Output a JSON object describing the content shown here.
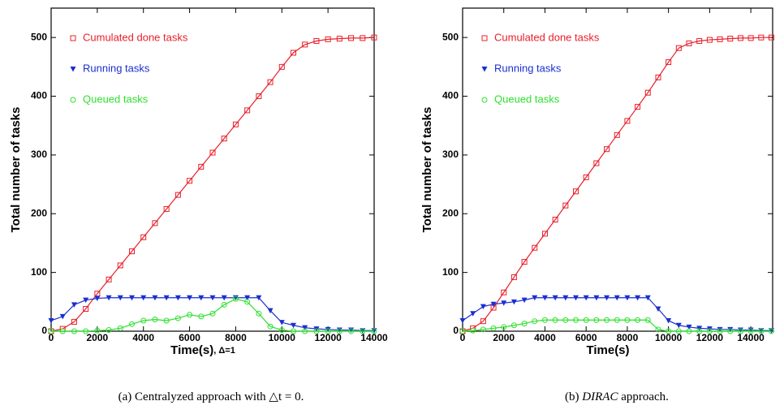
{
  "chart_data": [
    {
      "type": "line",
      "xlabel": "Time(s)",
      "xlabel_note": ", Δ=1",
      "ylabel": "Total number of tasks",
      "caption": [
        "(a) Centralyzed approach with △t = 0."
      ],
      "legend": "upper left",
      "xlim": [
        0,
        14000
      ],
      "ylim": [
        0,
        550
      ],
      "xticks": [
        0,
        2000,
        4000,
        6000,
        8000,
        10000,
        12000,
        14000
      ],
      "yticks": [
        0,
        100,
        200,
        300,
        400,
        500
      ],
      "x": [
        0,
        500,
        1000,
        1500,
        2000,
        2500,
        3000,
        3500,
        4000,
        4500,
        5000,
        5500,
        6000,
        6500,
        7000,
        7500,
        8000,
        8500,
        9000,
        9500,
        10000,
        10500,
        11000,
        11500,
        12000,
        12500,
        13000,
        13500,
        14000
      ],
      "series": [
        {
          "name": "Cumulated done tasks",
          "color": "#e8202a",
          "marker": "square",
          "values": [
            0,
            4,
            16,
            38,
            64,
            88,
            112,
            136,
            160,
            184,
            208,
            232,
            256,
            280,
            304,
            328,
            352,
            376,
            400,
            424,
            450,
            474,
            488,
            494,
            497,
            498,
            499,
            499,
            500
          ]
        },
        {
          "name": "Running tasks",
          "color": "#1a2fd0",
          "marker": "triangle",
          "values": [
            18,
            25,
            45,
            53,
            56,
            57,
            57,
            57,
            57,
            57,
            57,
            57,
            57,
            57,
            57,
            57,
            57,
            57,
            57,
            35,
            15,
            10,
            6,
            4,
            3,
            2,
            2,
            1,
            1
          ]
        },
        {
          "name": "Queued tasks",
          "color": "#2ee02e",
          "marker": "circle",
          "values": [
            0,
            0,
            0,
            0,
            1,
            2,
            5,
            12,
            18,
            20,
            18,
            22,
            28,
            25,
            30,
            45,
            55,
            50,
            30,
            8,
            2,
            0,
            0,
            0,
            0,
            0,
            0,
            0,
            0
          ]
        }
      ]
    },
    {
      "type": "line",
      "xlabel": "Time(s)",
      "ylabel": "Total number of tasks",
      "caption": [
        "(b) ",
        "DIRAC",
        " approach."
      ],
      "legend": "upper left",
      "xlim": [
        0,
        15060
      ],
      "ylim": [
        0,
        550
      ],
      "xticks": [
        0,
        2000,
        4000,
        6000,
        8000,
        10000,
        12000,
        14000
      ],
      "yticks": [
        0,
        100,
        200,
        300,
        400,
        500
      ],
      "x": [
        0,
        500,
        1000,
        1500,
        2000,
        2500,
        3000,
        3500,
        4000,
        4500,
        5000,
        5500,
        6000,
        6500,
        7000,
        7500,
        8000,
        8500,
        9000,
        9500,
        10000,
        10500,
        11000,
        11500,
        12000,
        12500,
        13000,
        13500,
        14000,
        14500,
        15000
      ],
      "series": [
        {
          "name": "Cumulated done tasks",
          "color": "#e8202a",
          "marker": "square",
          "values": [
            0,
            5,
            17,
            40,
            66,
            92,
            118,
            142,
            166,
            190,
            214,
            238,
            262,
            286,
            310,
            334,
            358,
            382,
            406,
            432,
            458,
            482,
            490,
            494,
            496,
            497,
            498,
            499,
            499,
            500,
            500
          ]
        },
        {
          "name": "Running tasks",
          "color": "#1a2fd0",
          "marker": "triangle",
          "values": [
            18,
            30,
            42,
            46,
            48,
            50,
            53,
            57,
            57,
            57,
            57,
            57,
            57,
            57,
            57,
            57,
            57,
            57,
            57,
            38,
            18,
            10,
            7,
            5,
            4,
            3,
            3,
            2,
            2,
            1,
            1
          ]
        },
        {
          "name": "Queued tasks",
          "color": "#2ee02e",
          "marker": "circle",
          "values": [
            0,
            1,
            3,
            5,
            7,
            10,
            13,
            17,
            19,
            19,
            19,
            19,
            19,
            19,
            19,
            19,
            19,
            19,
            19,
            3,
            0,
            0,
            0,
            0,
            0,
            0,
            0,
            0,
            0,
            0,
            0
          ]
        }
      ]
    }
  ]
}
